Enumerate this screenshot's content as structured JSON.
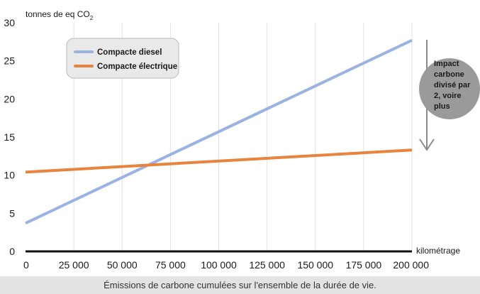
{
  "chart_data": {
    "type": "line",
    "title": "",
    "ylabel": "tonnes de eq CO",
    "ylabel_subscript": "2",
    "xlabel": "kilométrage",
    "x_ticks": [
      0,
      25000,
      50000,
      75000,
      100000,
      125000,
      150000,
      175000,
      200000
    ],
    "x_tick_labels": [
      "0",
      "25 000",
      "50 000",
      "75 000",
      "100 000",
      "125 000",
      "150 000",
      "175 000",
      "200 000"
    ],
    "y_ticks": [
      0,
      5,
      10,
      15,
      20,
      25,
      30
    ],
    "y_tick_labels": [
      "0",
      "5",
      "10",
      "15",
      "20",
      "25",
      "30"
    ],
    "xlim": [
      0,
      200000
    ],
    "ylim": [
      0,
      30
    ],
    "grid": "vertical",
    "legend_position": "top-left",
    "series": [
      {
        "name": "Compacte diesel",
        "color": "#9ab3e0",
        "x": [
          0,
          200000
        ],
        "y": [
          3.7,
          27.7
        ]
      },
      {
        "name": "Compacte électrique",
        "color": "#e8843e",
        "x": [
          0,
          200000
        ],
        "y": [
          10.4,
          13.3
        ]
      }
    ],
    "annotation": {
      "lines": [
        "Impact",
        "carbone",
        "divisé par",
        "2, voire",
        "plus"
      ]
    }
  },
  "caption": "Émissions de carbone cumulées sur l'ensemble de la durée de vie."
}
